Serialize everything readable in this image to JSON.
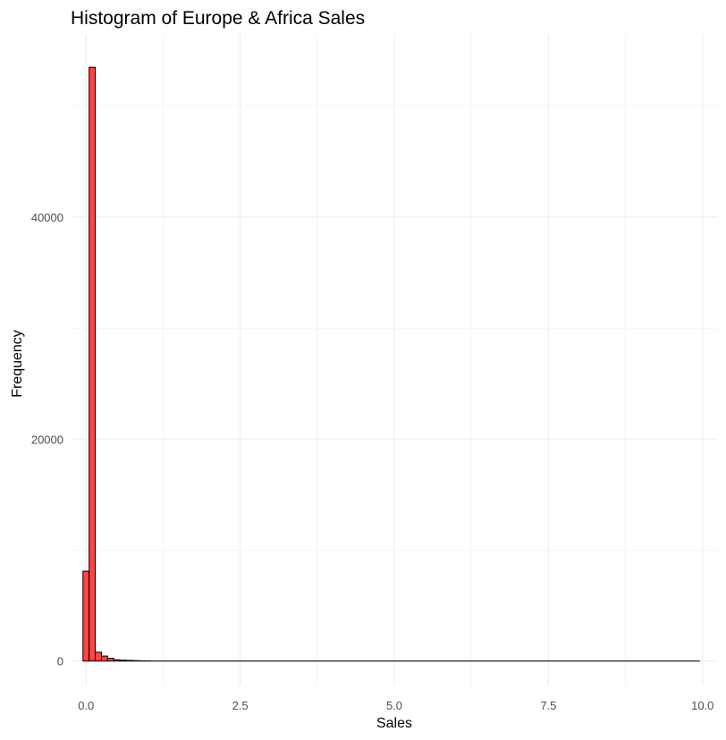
{
  "chart_data": {
    "type": "bar",
    "title": "Histogram of Europe & Africa Sales",
    "xlabel": "Sales",
    "ylabel": "Frequency",
    "xlim": [
      -0.25,
      10.25
    ],
    "ylim": [
      -2200,
      56500
    ],
    "x_ticks": [
      0,
      2.5,
      5,
      7.5,
      10
    ],
    "x_tick_labels": [
      "0.0",
      "2.5",
      "5.0",
      "7.5",
      "10.0"
    ],
    "x_minor_ticks": [
      1.25,
      3.75,
      6.25,
      8.75
    ],
    "y_ticks": [
      0,
      20000,
      40000
    ],
    "y_tick_labels": [
      "0",
      "20000",
      "40000"
    ],
    "y_minor_ticks": [
      10000,
      30000,
      50000
    ],
    "bin_width": 0.1,
    "bins": [
      {
        "x0": -0.05,
        "x1": 0.05,
        "count": 8100
      },
      {
        "x0": 0.05,
        "x1": 0.15,
        "count": 53500
      },
      {
        "x0": 0.15,
        "x1": 0.25,
        "count": 800
      },
      {
        "x0": 0.25,
        "x1": 0.35,
        "count": 450
      },
      {
        "x0": 0.35,
        "x1": 0.45,
        "count": 250
      },
      {
        "x0": 0.45,
        "x1": 0.55,
        "count": 120
      },
      {
        "x0": 0.55,
        "x1": 0.65,
        "count": 80
      },
      {
        "x0": 0.65,
        "x1": 0.75,
        "count": 60
      },
      {
        "x0": 0.75,
        "x1": 0.85,
        "count": 40
      },
      {
        "x0": 0.85,
        "x1": 0.95,
        "count": 25
      },
      {
        "x0": 0.95,
        "x1": 1.05,
        "count": 15
      },
      {
        "x0": 1.05,
        "x1": 9.95,
        "count": 5
      }
    ],
    "fill_color": "#ff4444",
    "stroke_color": "#000000",
    "grid": true,
    "legend": "none"
  }
}
